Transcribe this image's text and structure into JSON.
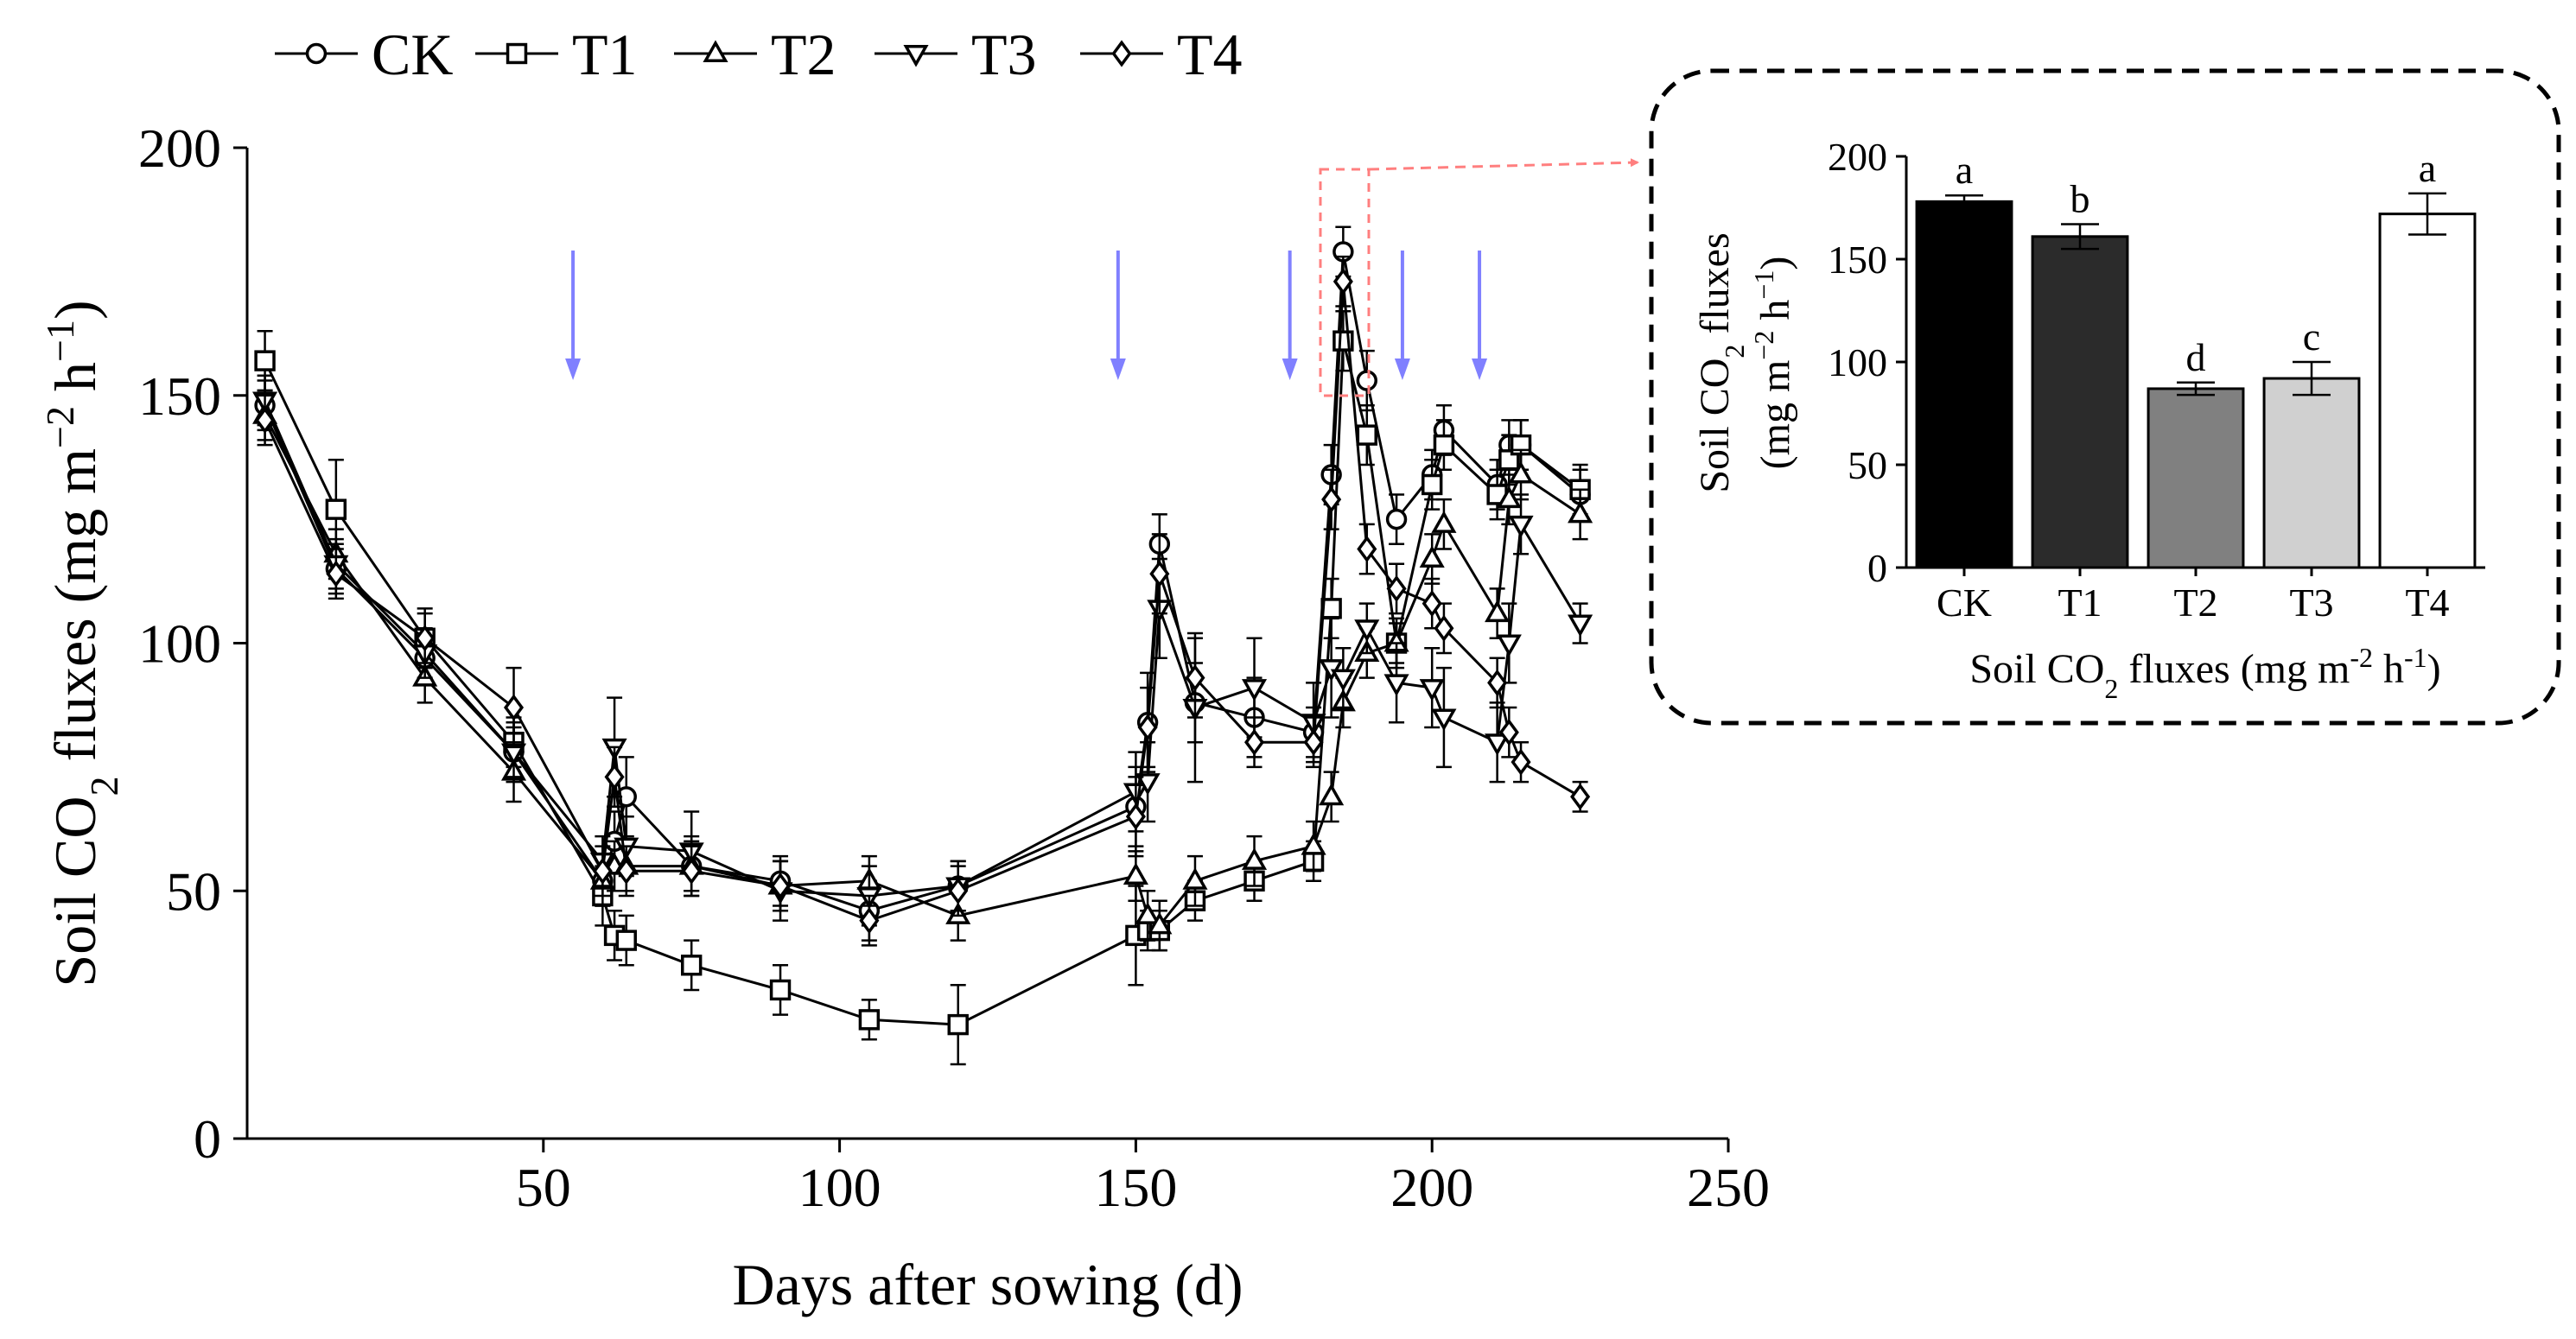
{
  "chart_data": [
    {
      "type": "line",
      "xlabel": "Days after sowing (d)",
      "ylabel_main": "Soil CO",
      "ylabel_sub": "2",
      "ylabel_tail": " fluxes (mg m",
      "ylabel_sup1": "−2",
      "ylabel_mid": " h",
      "ylabel_sup2": "−1",
      "ylabel_end": ")",
      "xlim": [
        0,
        250
      ],
      "ylim": [
        0,
        200
      ],
      "xticks": [
        50,
        100,
        150,
        200,
        250
      ],
      "yticks": [
        0,
        50,
        100,
        150,
        200
      ],
      "grid": false,
      "legend_position": "top-left, above plot",
      "fertilization_arrow_days": [
        55,
        147,
        176,
        195,
        208
      ],
      "arrow_color": "#8080ff",
      "series": [
        {
          "name": "CK",
          "marker": "circle",
          "x": [
            3,
            15,
            30,
            45,
            60,
            62,
            64,
            75,
            90,
            105,
            120,
            150,
            152,
            154,
            160,
            170,
            180,
            183,
            185,
            189,
            194,
            200,
            202,
            211,
            213,
            215,
            225
          ],
          "y": [
            148,
            115,
            97,
            78,
            52,
            60,
            69,
            55,
            52,
            46,
            51,
            67,
            84,
            120,
            88,
            85,
            82,
            134,
            179,
            153,
            125,
            134,
            143,
            132,
            140,
            140,
            130
          ],
          "err": [
            5,
            5,
            5,
            6,
            5,
            6,
            8,
            6,
            5,
            6,
            5,
            8,
            10,
            6,
            8,
            8,
            5,
            6,
            5,
            6,
            5,
            5,
            5,
            5,
            5,
            5,
            5
          ]
        },
        {
          "name": "T1",
          "marker": "square",
          "x": [
            3,
            15,
            30,
            45,
            60,
            62,
            64,
            75,
            90,
            105,
            120,
            150,
            152,
            154,
            160,
            170,
            180,
            183,
            185,
            189,
            194,
            200,
            202,
            211,
            213,
            215,
            225
          ],
          "y": [
            157,
            127,
            101,
            80,
            49,
            41,
            40,
            35,
            30,
            24,
            23,
            41,
            42,
            42,
            48,
            52,
            56,
            107,
            161,
            142,
            100,
            132,
            140,
            130,
            137,
            140,
            131
          ],
          "err": [
            6,
            10,
            6,
            5,
            6,
            5,
            5,
            5,
            5,
            4,
            8,
            10,
            4,
            4,
            4,
            4,
            4,
            6,
            6,
            6,
            4,
            5,
            5,
            5,
            5,
            5,
            5
          ]
        },
        {
          "name": "T2",
          "marker": "triangle-up",
          "x": [
            3,
            15,
            30,
            45,
            60,
            62,
            64,
            75,
            90,
            105,
            120,
            150,
            152,
            154,
            160,
            170,
            180,
            183,
            185,
            189,
            194,
            200,
            202,
            211,
            213,
            215,
            225
          ],
          "y": [
            146,
            118,
            93,
            74,
            52,
            55,
            55,
            55,
            51,
            52,
            45,
            53,
            45,
            43,
            52,
            56,
            59,
            69,
            88,
            98,
            100,
            117,
            124,
            106,
            129,
            134,
            126
          ],
          "err": [
            5,
            5,
            5,
            6,
            5,
            5,
            5,
            5,
            5,
            5,
            5,
            5,
            5,
            5,
            5,
            5,
            5,
            5,
            5,
            5,
            5,
            5,
            5,
            5,
            5,
            5,
            5
          ]
        },
        {
          "name": "T3",
          "marker": "triangle-down",
          "x": [
            3,
            15,
            30,
            45,
            60,
            62,
            64,
            75,
            90,
            105,
            120,
            150,
            152,
            154,
            160,
            170,
            180,
            183,
            185,
            189,
            194,
            200,
            202,
            211,
            213,
            215,
            225
          ],
          "y": [
            149,
            116,
            98,
            78,
            56,
            79,
            59,
            58,
            50,
            49,
            51,
            70,
            72,
            107,
            87,
            91,
            84,
            95,
            93,
            103,
            92,
            91,
            85,
            80,
            100,
            124,
            104
          ],
          "err": [
            5,
            5,
            5,
            5,
            5,
            10,
            6,
            8,
            6,
            6,
            5,
            8,
            8,
            10,
            15,
            10,
            8,
            10,
            6,
            5,
            8,
            8,
            10,
            8,
            8,
            6,
            4
          ]
        },
        {
          "name": "T4",
          "marker": "diamond",
          "x": [
            3,
            15,
            30,
            45,
            60,
            62,
            64,
            75,
            90,
            105,
            120,
            150,
            152,
            154,
            160,
            170,
            180,
            183,
            185,
            189,
            194,
            200,
            202,
            211,
            213,
            215,
            225
          ],
          "y": [
            145,
            114,
            101,
            87,
            54,
            73,
            54,
            54,
            51,
            44,
            50,
            65,
            83,
            114,
            93,
            80,
            80,
            129,
            173,
            119,
            111,
            108,
            103,
            92,
            82,
            76,
            69
          ],
          "err": [
            5,
            5,
            5,
            8,
            5,
            6,
            5,
            5,
            5,
            5,
            5,
            8,
            8,
            8,
            8,
            5,
            5,
            6,
            5,
            5,
            5,
            5,
            5,
            5,
            5,
            4,
            3
          ]
        }
      ]
    },
    {
      "type": "bar",
      "title": "",
      "xlabel_main": "Soil CO",
      "xlabel_sub": "2",
      "xlabel_tail": " fluxes (mg m",
      "xlabel_sup1": "-2",
      "xlabel_mid": " h",
      "xlabel_sup2": "-1",
      "xlabel_end": ")",
      "ylabel_line1": "Soil CO",
      "ylabel_line1_sub": "2",
      "ylabel_line1_tail": " fluxes",
      "ylabel_line2": "(mg m",
      "ylabel_line2_sup1": "−2",
      "ylabel_line2_mid": " h",
      "ylabel_line2_sup2": "−1",
      "ylabel_line2_end": ")",
      "ylim": [
        0,
        200
      ],
      "yticks": [
        0,
        50,
        100,
        150,
        200
      ],
      "categories": [
        "CK",
        "T1",
        "T2",
        "T3",
        "T4"
      ],
      "values": [
        178,
        161,
        87,
        92,
        172
      ],
      "errors": [
        3,
        6,
        3,
        8,
        10
      ],
      "letters": [
        "a",
        "b",
        "d",
        "c",
        "a"
      ],
      "bar_colors": [
        "#000000",
        "#2b2b2b",
        "#808080",
        "#d0d0d0",
        "#ffffff"
      ],
      "zoom_highlight_color": "#ff7f7f"
    }
  ]
}
